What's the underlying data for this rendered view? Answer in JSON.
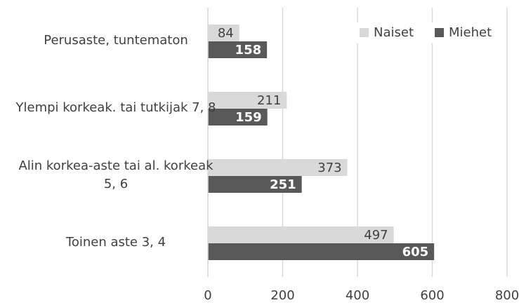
{
  "chart_data": {
    "type": "bar",
    "orientation": "horizontal",
    "categories": [
      "Perusaste, tuntematon",
      "Ylempi korkeak. tai tutkijak 7, 8",
      "Alin korkea-aste tai al. korkeak 5, 6",
      "Toinen aste 3, 4"
    ],
    "series": [
      {
        "name": "Naiset",
        "color": "#d9d9d9",
        "values": [
          84,
          211,
          373,
          497
        ]
      },
      {
        "name": "Miehet",
        "color": "#595959",
        "values": [
          158,
          159,
          251,
          605
        ]
      }
    ],
    "xlim": [
      0,
      800
    ],
    "xticks": [
      0,
      200,
      400,
      600,
      800
    ],
    "grid": true,
    "legend": "top-right"
  }
}
